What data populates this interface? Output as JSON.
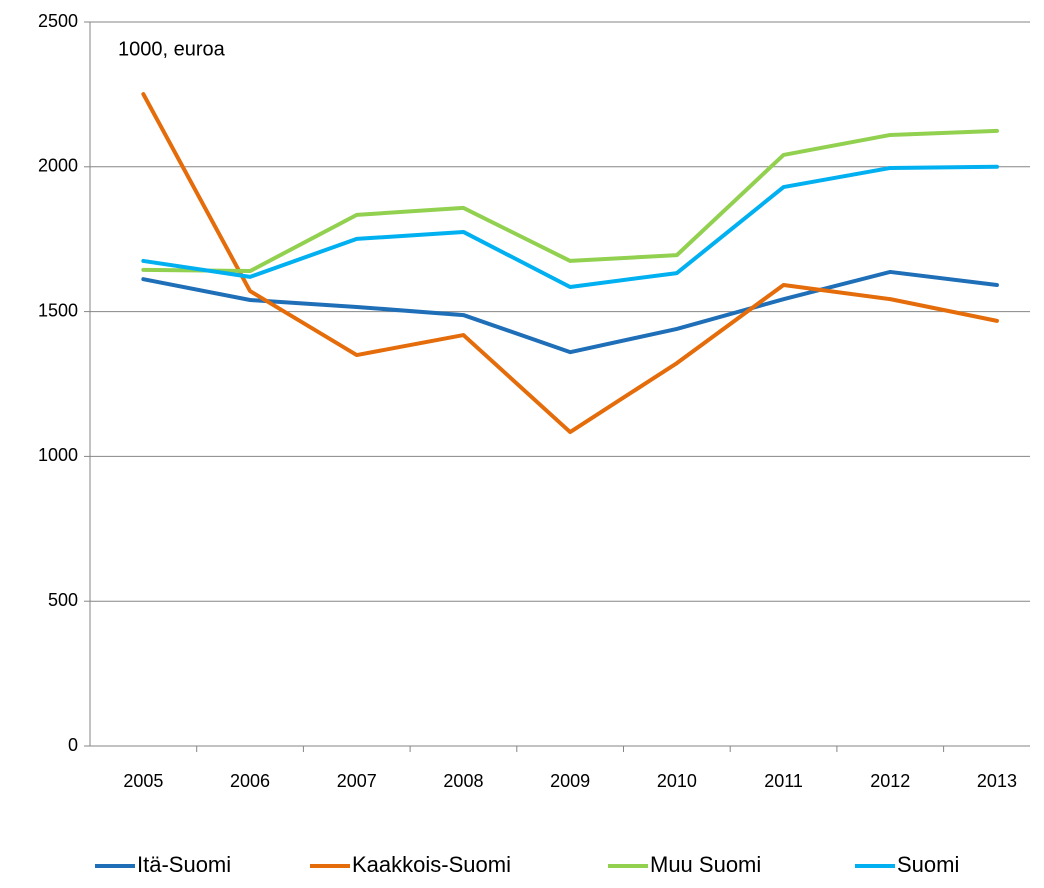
{
  "chart_data": {
    "type": "line",
    "annotation": "1000, euroa",
    "categories": [
      "2005",
      "2006",
      "2007",
      "2008",
      "2009",
      "2010",
      "2011",
      "2012",
      "2013"
    ],
    "series": [
      {
        "name": "Itä-Suomi",
        "color": "#1f6fb8",
        "values": [
          1612,
          1540,
          1516,
          1488,
          1360,
          1440,
          1543,
          1637,
          1592
        ]
      },
      {
        "name": "Kaakkois-Suomi",
        "color": "#e46c0a",
        "values": [
          2251,
          1571,
          1350,
          1419,
          1084,
          1322,
          1592,
          1543,
          1468
        ]
      },
      {
        "name": "Muu Suomi",
        "color": "#92d050",
        "values": [
          1644,
          1640,
          1834,
          1858,
          1675,
          1695,
          2041,
          2110,
          2124
        ]
      },
      {
        "name": "Suomi",
        "color": "#00b0f0",
        "values": [
          1675,
          1620,
          1751,
          1775,
          1585,
          1633,
          1930,
          1996,
          2000
        ]
      }
    ],
    "ylim": [
      0,
      2500
    ],
    "yticks": [
      0,
      500,
      1000,
      1500,
      2000,
      2500
    ],
    "grid": true,
    "legend": "bottom"
  }
}
